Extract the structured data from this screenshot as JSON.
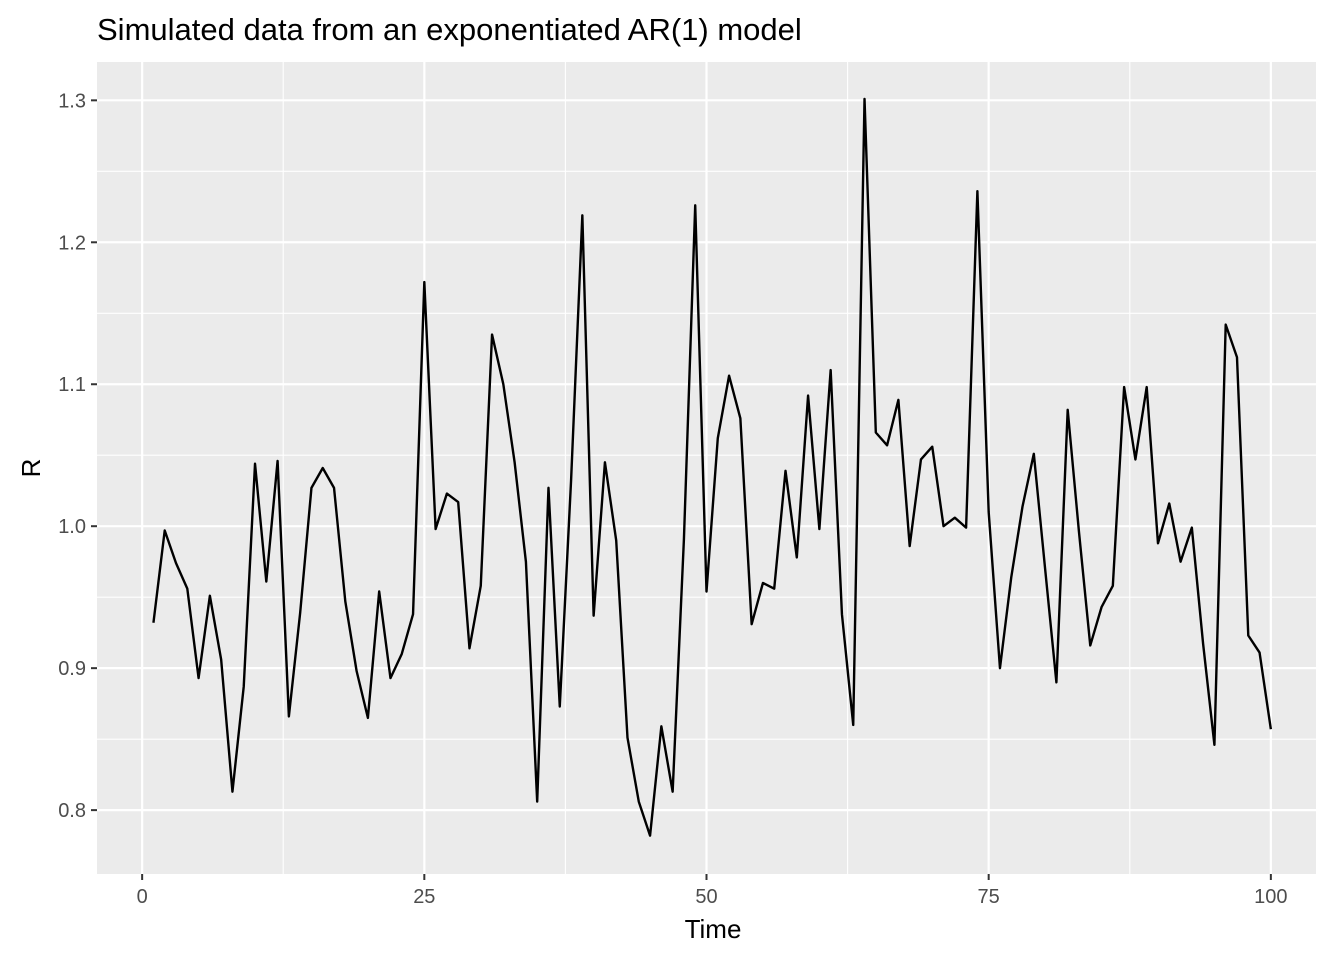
{
  "chart_data": {
    "type": "line",
    "title": "Simulated data from an exponentiated AR(1) model",
    "xlabel": "Time",
    "ylabel": "R",
    "xlim": [
      -4,
      104
    ],
    "ylim": [
      0.755,
      1.327
    ],
    "x_ticks": [
      0,
      25,
      50,
      75,
      100
    ],
    "x_minor_ticks": [
      12.5,
      37.5,
      62.5,
      87.5
    ],
    "y_ticks": [
      0.8,
      0.9,
      1.0,
      1.1,
      1.2,
      1.3
    ],
    "y_tick_labels": [
      "0.8",
      "0.9",
      "1.0",
      "1.1",
      "1.2",
      "1.3"
    ],
    "y_minor_ticks": [
      0.85,
      0.95,
      1.05,
      1.15,
      1.25
    ],
    "grid": true,
    "legend": "none",
    "line_color": "#000000",
    "panel_color": "#ebebeb",
    "x": [
      1,
      2,
      3,
      4,
      5,
      6,
      7,
      8,
      9,
      10,
      11,
      12,
      13,
      14,
      15,
      16,
      17,
      18,
      19,
      20,
      21,
      22,
      23,
      24,
      25,
      26,
      27,
      28,
      29,
      30,
      31,
      32,
      33,
      34,
      35,
      36,
      37,
      38,
      39,
      40,
      41,
      42,
      43,
      44,
      45,
      46,
      47,
      48,
      49,
      50,
      51,
      52,
      53,
      54,
      55,
      56,
      57,
      58,
      59,
      60,
      61,
      62,
      63,
      64,
      65,
      66,
      67,
      68,
      69,
      70,
      71,
      72,
      73,
      74,
      75,
      76,
      77,
      78,
      79,
      80,
      81,
      82,
      83,
      84,
      85,
      86,
      87,
      88,
      89,
      90,
      91,
      92,
      93,
      94,
      95,
      96,
      97,
      98,
      99,
      100
    ],
    "values": [
      0.932,
      0.997,
      0.974,
      0.956,
      0.893,
      0.951,
      0.906,
      0.813,
      0.887,
      1.044,
      0.961,
      1.046,
      0.866,
      0.939,
      1.027,
      1.041,
      1.027,
      0.947,
      0.898,
      0.865,
      0.954,
      0.893,
      0.91,
      0.938,
      1.172,
      0.998,
      1.023,
      1.017,
      0.914,
      0.958,
      1.135,
      1.1,
      1.045,
      0.975,
      0.806,
      1.027,
      0.873,
      1.032,
      1.219,
      0.937,
      1.045,
      0.99,
      0.851,
      0.806,
      0.782,
      0.859,
      0.813,
      0.991,
      1.226,
      0.954,
      1.062,
      1.106,
      1.076,
      0.931,
      0.96,
      0.956,
      1.039,
      0.978,
      1.092,
      0.998,
      1.11,
      0.938,
      0.86,
      1.301,
      1.066,
      1.057,
      1.089,
      0.986,
      1.047,
      1.056,
      1.0,
      1.006,
      0.999,
      1.236,
      1.01,
      0.9,
      0.964,
      1.014,
      1.051,
      0.97,
      0.89,
      1.082,
      0.996,
      0.916,
      0.943,
      0.958,
      1.098,
      1.047,
      1.098,
      0.988,
      1.016,
      0.975,
      0.999,
      0.917,
      0.846,
      1.142,
      1.119,
      0.923,
      0.911,
      0.857
    ]
  }
}
